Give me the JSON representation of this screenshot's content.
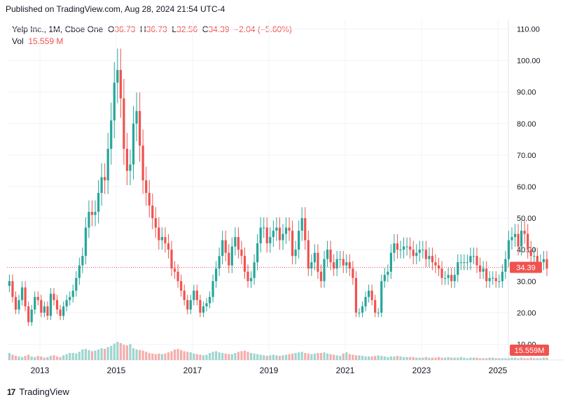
{
  "header": {
    "published": "Published on TradingView.com, Aug 28, 2024 21:54 UTC-4"
  },
  "legend": {
    "symbol": "Yelp Inc., 1M, Cboe One",
    "open_label": "O",
    "open": "36.73",
    "high_label": "H",
    "high": "36.73",
    "low_label": "L",
    "low": "32.56",
    "close_label": "C",
    "close": "34.39",
    "change": "−2.04 (−5.60%)",
    "vol_label": "Vol",
    "vol": "15.559 M"
  },
  "footer": {
    "brand": "TradingView",
    "logo": "tv-logo-icon"
  },
  "colors": {
    "up": "#26a69a",
    "down": "#ef5350",
    "vol_up": "#9fd5cf",
    "vol_down": "#f3aeac",
    "grid": "#f0f3fa",
    "axis_text": "#131722"
  },
  "chart_data": {
    "type": "candlestick",
    "ylim": [
      5,
      113
    ],
    "y_ticks": [
      "110.00",
      "100.00",
      "90.00",
      "80.00",
      "70.00",
      "60.00",
      "50.00",
      "40.00",
      "30.00",
      "20.00",
      "10.00"
    ],
    "x_ticks": [
      "2013",
      "2015",
      "2017",
      "2019",
      "2021",
      "2023",
      "2025"
    ],
    "x_tick_years": [
      2013,
      2015,
      2017,
      2019,
      2021,
      2023,
      2025
    ],
    "last_price_label": "34.39",
    "last_price": 34.39,
    "vol_label": "15.559M",
    "last_volume": 15.559,
    "vol_max": 55,
    "start_year": 2012.2,
    "closes": [
      30,
      25,
      21,
      24,
      28,
      22,
      17,
      21,
      25,
      24,
      20,
      22,
      19,
      26,
      24,
      21,
      19,
      22,
      24,
      25,
      27,
      31,
      35,
      38,
      47,
      52,
      51,
      52,
      58,
      63,
      62,
      72,
      81,
      93,
      97,
      88,
      72,
      65,
      67,
      80,
      84,
      73,
      62,
      58,
      54,
      50,
      47,
      43,
      44,
      42,
      40,
      34,
      33,
      30,
      27,
      24,
      21,
      24,
      27,
      24,
      20,
      22,
      23,
      25,
      30,
      34,
      38,
      43,
      39,
      35,
      41,
      44,
      40,
      38,
      33,
      30,
      31,
      36,
      42,
      47,
      47,
      42,
      44,
      46,
      47,
      43,
      45,
      47,
      46,
      38,
      40,
      46,
      50,
      43,
      34,
      36,
      39,
      33,
      30,
      37,
      40,
      36,
      34,
      37,
      37,
      35,
      36,
      34,
      31,
      20,
      20,
      22,
      25,
      27,
      24,
      20,
      20,
      30,
      32,
      33,
      39,
      42,
      40,
      40,
      41,
      41,
      40,
      38,
      39,
      40,
      40,
      37,
      38,
      36,
      35,
      34,
      31,
      31,
      32,
      30,
      32,
      36,
      36,
      36,
      36,
      38,
      38,
      35,
      33,
      34,
      30,
      31,
      31,
      30,
      30,
      33,
      37,
      43,
      44,
      45,
      41,
      46,
      45,
      40,
      38,
      38,
      36,
      36,
      37,
      34
    ],
    "volumes": [
      12,
      9,
      7,
      6,
      5,
      7,
      9,
      6,
      5,
      7,
      6,
      4,
      5,
      7,
      8,
      6,
      5,
      8,
      10,
      12,
      12,
      11,
      14,
      18,
      19,
      17,
      15,
      16,
      18,
      20,
      19,
      22,
      24,
      28,
      31,
      29,
      26,
      25,
      27,
      20,
      18,
      17,
      16,
      14,
      12,
      11,
      10,
      11,
      10,
      11,
      13,
      15,
      18,
      19,
      17,
      15,
      14,
      13,
      11,
      10,
      9,
      8,
      9,
      12,
      14,
      15,
      13,
      12,
      11,
      10,
      10,
      12,
      14,
      15,
      16,
      14,
      12,
      11,
      10,
      9,
      8,
      7,
      8,
      9,
      8,
      7,
      8,
      9,
      10,
      11,
      12,
      13,
      14,
      12,
      11,
      10,
      11,
      12,
      12,
      13,
      11,
      10,
      9,
      8,
      7,
      11,
      13,
      10,
      9,
      8,
      8,
      7,
      6,
      6,
      6,
      7,
      8,
      7,
      6,
      5,
      6,
      6,
      7,
      6,
      5,
      5,
      5,
      5,
      4,
      4,
      4,
      5,
      4,
      4,
      4,
      5,
      4,
      4,
      5,
      4,
      4,
      4,
      5,
      4,
      3,
      4,
      4,
      4,
      3,
      3,
      3,
      4,
      4,
      3,
      3,
      3,
      3,
      3,
      4,
      4,
      3,
      4,
      3,
      3,
      4,
      3,
      3,
      3,
      4,
      4
    ]
  }
}
